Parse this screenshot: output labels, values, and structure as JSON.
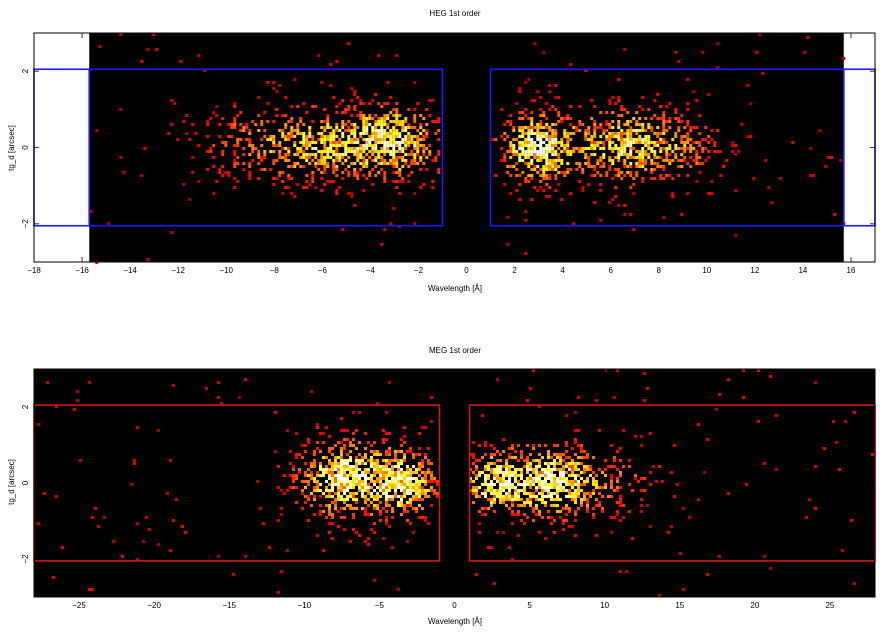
{
  "chart_data": [
    {
      "type": "heatmap",
      "title": "HEG 1st order",
      "xlabel": "Wavelength [Å]",
      "ylabel": "tg_d [arcsec]",
      "xlim": [
        -18,
        17
      ],
      "ylim": [
        -3,
        3
      ],
      "xticks": [
        -18,
        -16,
        -14,
        -12,
        -10,
        -8,
        -6,
        -4,
        -2,
        0,
        2,
        4,
        6,
        8,
        10,
        12,
        14,
        16
      ],
      "yticks": [
        -2,
        0,
        2
      ],
      "data_extent_x": [
        -15.7,
        15.7
      ],
      "colormap": "hot",
      "background": "#000000",
      "region_color": "#1a1aff",
      "regions": [
        {
          "x": [
            -15.7,
            -1.0
          ],
          "y": [
            -2.05,
            2.05
          ]
        },
        {
          "x": [
            1.0,
            15.7
          ],
          "y": [
            -2.05,
            2.05
          ]
        },
        {
          "x": [
            15.7,
            17
          ],
          "y": [
            -2.05,
            2.05
          ]
        },
        {
          "x": [
            -18,
            -15.7
          ],
          "y": [
            -2.05,
            2.05
          ]
        }
      ],
      "blobs": [
        {
          "x": -3.3,
          "y": 0.15,
          "sx": 1.3,
          "sy": 0.55,
          "amp": 1.0
        },
        {
          "x": -6.3,
          "y": 0.05,
          "sx": 1.2,
          "sy": 0.6,
          "amp": 0.55
        },
        {
          "x": -8.9,
          "y": 0.1,
          "sx": 1.4,
          "sy": 0.6,
          "amp": 0.35
        },
        {
          "x": 3.0,
          "y": 0.0,
          "sx": 1.0,
          "sy": 0.55,
          "amp": 1.0
        },
        {
          "x": 6.6,
          "y": 0.05,
          "sx": 1.3,
          "sy": 0.6,
          "amp": 0.8
        },
        {
          "x": 9.2,
          "y": 0.0,
          "sx": 1.0,
          "sy": 0.55,
          "amp": 0.3
        }
      ],
      "seed": 7
    },
    {
      "type": "heatmap",
      "title": "MEG 1st order",
      "xlabel": "Wavelength [Å]",
      "ylabel": "tg_d [arcsec]",
      "xlim": [
        -28,
        28
      ],
      "ylim": [
        -3,
        3
      ],
      "xticks": [
        -25,
        -20,
        -15,
        -10,
        -5,
        0,
        5,
        10,
        15,
        20,
        25
      ],
      "yticks": [
        -2,
        0,
        2
      ],
      "data_extent_x": [
        -28,
        28
      ],
      "colormap": "hot",
      "background": "#000000",
      "region_color": "#cc1a1a",
      "regions": [
        {
          "x": [
            -28,
            -1.0
          ],
          "y": [
            -2.05,
            2.05
          ]
        },
        {
          "x": [
            1.0,
            28
          ],
          "y": [
            -2.05,
            2.05
          ]
        }
      ],
      "blobs": [
        {
          "x": -7.2,
          "y": 0.1,
          "sx": 2.0,
          "sy": 0.6,
          "amp": 1.0
        },
        {
          "x": -3.2,
          "y": 0.0,
          "sx": 1.2,
          "sy": 0.55,
          "amp": 0.85
        },
        {
          "x": 2.6,
          "y": 0.0,
          "sx": 1.3,
          "sy": 0.5,
          "amp": 0.9
        },
        {
          "x": 6.5,
          "y": 0.05,
          "sx": 1.8,
          "sy": 0.55,
          "amp": 1.0
        },
        {
          "x": 10.5,
          "y": 0.0,
          "sx": 1.8,
          "sy": 0.6,
          "amp": 0.25
        }
      ],
      "seed": 13
    }
  ]
}
